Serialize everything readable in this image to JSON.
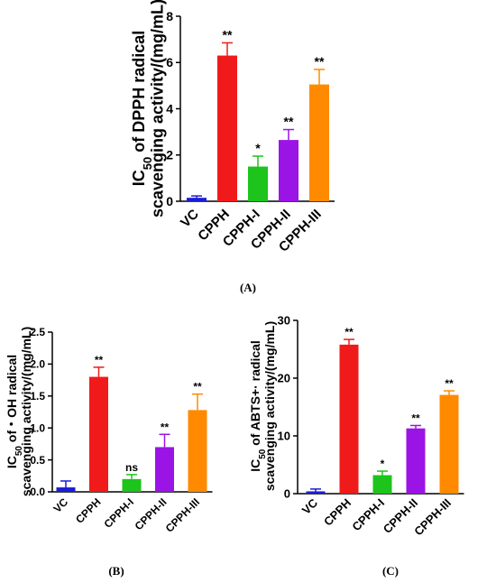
{
  "chart_data": [
    {
      "type": "bar",
      "panel_label": "(A)",
      "ylabel_parts": [
        "IC",
        "50",
        " of  DPPH radical"
      ],
      "ylabel_line2": "scavenging activity/(mg/mL)",
      "categories": [
        "VC",
        "CPPH",
        "CPPH-I",
        "CPPH-II",
        "CPPH-III"
      ],
      "values": [
        0.15,
        6.3,
        1.5,
        2.65,
        5.05
      ],
      "errors": [
        0.08,
        0.55,
        0.45,
        0.45,
        0.65
      ],
      "significance": [
        "",
        "**",
        "*",
        "**",
        "**"
      ],
      "ylim": [
        0,
        8
      ],
      "yticks": [
        "0",
        "2",
        "4",
        "6",
        "8"
      ],
      "colors": [
        "#1c1cd6",
        "#f11a1a",
        "#1cc41c",
        "#9b14e6",
        "#ff8a00"
      ],
      "grid": false
    },
    {
      "type": "bar",
      "panel_label": "(B)",
      "ylabel_parts": [
        "IC",
        "50",
        " of・OH radical"
      ],
      "ylabel_line2": "scavenging activity/(mg/mL)",
      "categories": [
        "VC",
        "CPPH",
        "CPPH-I",
        "CPPH-II",
        "CPPH-III"
      ],
      "values": [
        0.07,
        1.8,
        0.2,
        0.7,
        1.28
      ],
      "errors": [
        0.1,
        0.15,
        0.07,
        0.2,
        0.25
      ],
      "significance": [
        "",
        "**",
        "ns",
        "**",
        "**"
      ],
      "ylim": [
        0,
        2.5
      ],
      "yticks": [
        "0.0",
        "0.5",
        "1.0",
        "1.5",
        "2.0",
        "2.5"
      ],
      "colors": [
        "#1c1cd6",
        "#f11a1a",
        "#1cc41c",
        "#9b14e6",
        "#ff8a00"
      ],
      "grid": false
    },
    {
      "type": "bar",
      "panel_label": "(C)",
      "ylabel_parts": [
        "IC",
        "50",
        " of ABTS+· radical"
      ],
      "ylabel_line2": "scavenging activity/(mg/mL)",
      "categories": [
        "VC",
        "CPPH",
        "CPPH-I",
        "CPPH-II",
        "CPPH-III"
      ],
      "values": [
        0.4,
        25.8,
        3.2,
        11.3,
        17.1
      ],
      "errors": [
        0.4,
        0.9,
        0.7,
        0.5,
        0.7
      ],
      "significance": [
        "",
        "**",
        "*",
        "**",
        "**"
      ],
      "ylim": [
        0,
        30
      ],
      "yticks": [
        "0",
        "10",
        "20",
        "30"
      ],
      "colors": [
        "#1c1cd6",
        "#f11a1a",
        "#1cc41c",
        "#9b14e6",
        "#ff8a00"
      ],
      "grid": false
    }
  ]
}
